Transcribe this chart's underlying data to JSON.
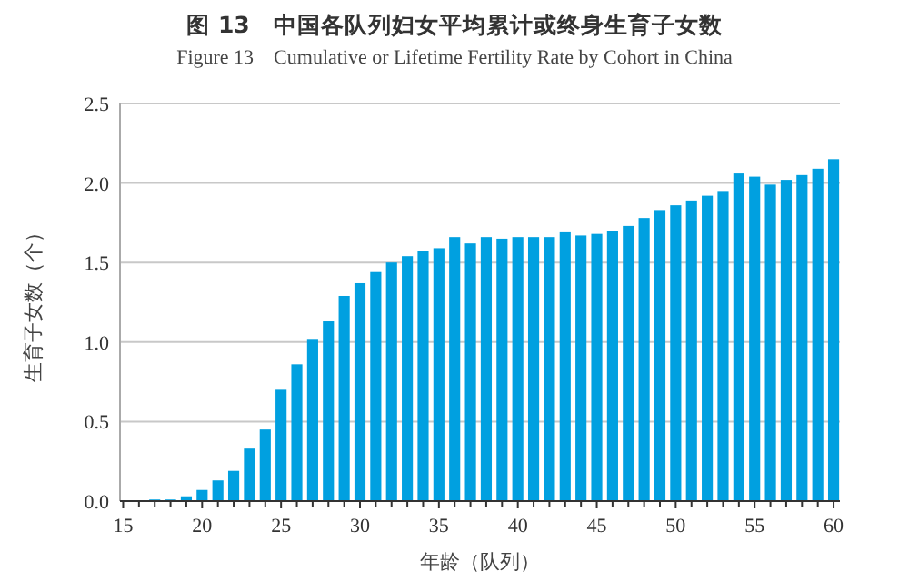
{
  "chart_data": {
    "type": "bar",
    "title": "图 13　中国各队列妇女平均累计或终身生育子女数",
    "subtitle": "Figure 13　Cumulative or Lifetime Fertility Rate by Cohort in China",
    "xlabel": "年龄（队列）",
    "ylabel": "生育子女数（个）",
    "x": [
      17,
      18,
      19,
      20,
      21,
      22,
      23,
      24,
      25,
      26,
      27,
      28,
      29,
      30,
      31,
      32,
      33,
      34,
      35,
      36,
      37,
      38,
      39,
      40,
      41,
      42,
      43,
      44,
      45,
      46,
      47,
      48,
      49,
      50,
      51,
      52,
      53,
      54,
      55,
      56,
      57,
      58,
      59,
      60
    ],
    "values": [
      0.01,
      0.01,
      0.03,
      0.07,
      0.13,
      0.19,
      0.33,
      0.45,
      0.7,
      0.86,
      1.02,
      1.13,
      1.29,
      1.37,
      1.44,
      1.5,
      1.54,
      1.57,
      1.59,
      1.66,
      1.62,
      1.66,
      1.65,
      1.66,
      1.66,
      1.66,
      1.69,
      1.67,
      1.68,
      1.7,
      1.73,
      1.78,
      1.83,
      1.86,
      1.89,
      1.92,
      1.95,
      2.06,
      2.04,
      1.99,
      2.02,
      2.05,
      2.09,
      2.15
    ],
    "color": "#00a0e0",
    "xlim": [
      14.8,
      60.4
    ],
    "ylim": [
      0,
      2.5
    ],
    "xticks": [
      15,
      {
        "value": 16,
        "label": null
      },
      {
        "value": 17,
        "label": null
      },
      {
        "value": 18,
        "label": null
      },
      {
        "value": 19,
        "label": null
      },
      20,
      {
        "value": 21,
        "label": null
      },
      {
        "value": 22,
        "label": null
      },
      {
        "value": 23,
        "label": null
      },
      {
        "value": 24,
        "label": null
      },
      25,
      {
        "value": 26,
        "label": null
      },
      {
        "value": 27,
        "label": null
      },
      {
        "value": 28,
        "label": null
      },
      {
        "value": 29,
        "label": null
      },
      30,
      {
        "value": 31,
        "label": null
      },
      {
        "value": 32,
        "label": null
      },
      {
        "value": 33,
        "label": null
      },
      {
        "value": 34,
        "label": null
      },
      35,
      {
        "value": 36,
        "label": null
      },
      {
        "value": 37,
        "label": null
      },
      {
        "value": 38,
        "label": null
      },
      {
        "value": 39,
        "label": null
      },
      40,
      {
        "value": 41,
        "label": null
      },
      {
        "value": 42,
        "label": null
      },
      {
        "value": 43,
        "label": null
      },
      {
        "value": 44,
        "label": null
      },
      45,
      {
        "value": 46,
        "label": null
      },
      {
        "value": 47,
        "label": null
      },
      {
        "value": 48,
        "label": null
      },
      {
        "value": 49,
        "label": null
      },
      50,
      {
        "value": 51,
        "label": null
      },
      {
        "value": 52,
        "label": null
      },
      {
        "value": 53,
        "label": null
      },
      {
        "value": 54,
        "label": null
      },
      55,
      {
        "value": 56,
        "label": null
      },
      {
        "value": 57,
        "label": null
      },
      {
        "value": 58,
        "label": null
      },
      {
        "value": 59,
        "label": null
      },
      60
    ],
    "yticks": [
      {
        "value": 0,
        "label": "0.0"
      },
      {
        "value": 0.5,
        "label": "0.5"
      },
      {
        "value": 1,
        "label": "1.0"
      },
      {
        "value": 1.5,
        "label": "1.5"
      },
      {
        "value": 2,
        "label": "2.0"
      },
      {
        "value": 2.5,
        "label": "2.5"
      }
    ],
    "grid": "y"
  }
}
